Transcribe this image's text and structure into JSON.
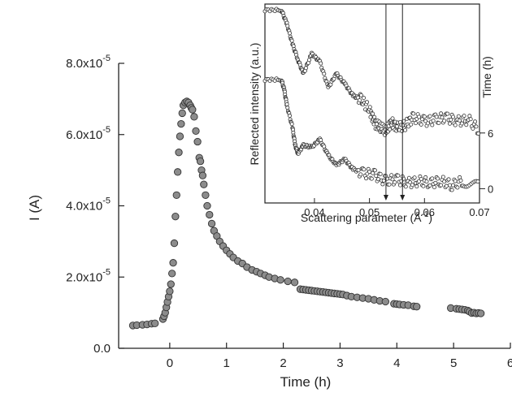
{
  "chart_data": [
    {
      "type": "scatter",
      "xlabel": "Time (h)",
      "ylabel": "I (A)",
      "xlim": [
        -0.9,
        6.0
      ],
      "ylim": [
        0.0,
        8e-05
      ],
      "xticks": [
        0,
        1,
        2,
        3,
        4,
        5,
        6
      ],
      "xtick_labels": [
        "0",
        "1",
        "2",
        "3",
        "4",
        "5",
        "6"
      ],
      "yticks": [
        0,
        2e-05,
        4e-05,
        6e-05,
        8e-05
      ],
      "ytick_labels": [
        {
          "mant": "0.0",
          "exp": ""
        },
        {
          "mant": "2.0x10",
          "exp": "-5"
        },
        {
          "mant": "4.0x10",
          "exp": "-5"
        },
        {
          "mant": "6.0x10",
          "exp": "-5"
        },
        {
          "mant": "8.0x10",
          "exp": "-5"
        }
      ],
      "marker_color": "#8c8c8c",
      "series": [
        {
          "points": [
            [
              -0.65,
              6.4e-06
            ],
            [
              -0.58,
              6.5e-06
            ],
            [
              -0.48,
              6.6e-06
            ],
            [
              -0.4,
              6.7e-06
            ],
            [
              -0.32,
              6.9e-06
            ],
            [
              -0.26,
              7e-06
            ],
            [
              -0.12,
              8.2e-06
            ],
            [
              -0.1,
              9e-06
            ],
            [
              -0.08,
              1e-05
            ],
            [
              -0.06,
              1.15e-05
            ],
            [
              -0.04,
              1.3e-05
            ],
            [
              -0.02,
              1.45e-05
            ],
            [
              0.0,
              1.6e-05
            ],
            [
              0.02,
              1.8e-05
            ],
            [
              0.04,
              2.1e-05
            ],
            [
              0.06,
              2.4e-05
            ],
            [
              0.08,
              2.95e-05
            ],
            [
              0.1,
              3.7e-05
            ],
            [
              0.12,
              4.3e-05
            ],
            [
              0.14,
              4.95e-05
            ],
            [
              0.16,
              5.5e-05
            ],
            [
              0.18,
              5.95e-05
            ],
            [
              0.2,
              6.3e-05
            ],
            [
              0.22,
              6.6e-05
            ],
            [
              0.24,
              6.82e-05
            ],
            [
              0.27,
              6.9e-05
            ],
            [
              0.3,
              6.93e-05
            ],
            [
              0.33,
              6.9e-05
            ],
            [
              0.36,
              6.82e-05
            ],
            [
              0.38,
              6.75e-05
            ],
            [
              0.4,
              6.7e-05
            ],
            [
              0.43,
              6.5e-05
            ],
            [
              0.46,
              6.1e-05
            ],
            [
              0.49,
              5.8e-05
            ],
            [
              0.52,
              5.35e-05
            ],
            [
              0.54,
              5.25e-05
            ],
            [
              0.56,
              5e-05
            ],
            [
              0.58,
              4.85e-05
            ],
            [
              0.6,
              4.6e-05
            ],
            [
              0.63,
              4.3e-05
            ],
            [
              0.66,
              4e-05
            ],
            [
              0.7,
              3.75e-05
            ],
            [
              0.74,
              3.5e-05
            ],
            [
              0.78,
              3.3e-05
            ],
            [
              0.83,
              3.15e-05
            ],
            [
              0.88,
              3e-05
            ],
            [
              0.94,
              2.87e-05
            ],
            [
              1.0,
              2.75e-05
            ],
            [
              1.06,
              2.65e-05
            ],
            [
              1.12,
              2.55e-05
            ],
            [
              1.2,
              2.45e-05
            ],
            [
              1.28,
              2.38e-05
            ],
            [
              1.36,
              2.28e-05
            ],
            [
              1.45,
              2.2e-05
            ],
            [
              1.53,
              2.15e-05
            ],
            [
              1.6,
              2.1e-05
            ],
            [
              1.68,
              2.05e-05
            ],
            [
              1.75,
              2e-05
            ],
            [
              1.85,
              1.96e-05
            ],
            [
              1.95,
              1.92e-05
            ],
            [
              2.08,
              1.88e-05
            ],
            [
              2.2,
              1.85e-05
            ],
            [
              2.3,
              1.66e-05
            ],
            [
              2.35,
              1.65e-05
            ],
            [
              2.4,
              1.64e-05
            ],
            [
              2.45,
              1.63e-05
            ],
            [
              2.5,
              1.62e-05
            ],
            [
              2.55,
              1.61e-05
            ],
            [
              2.6,
              1.6e-05
            ],
            [
              2.65,
              1.59e-05
            ],
            [
              2.7,
              1.58e-05
            ],
            [
              2.75,
              1.57e-05
            ],
            [
              2.8,
              1.56e-05
            ],
            [
              2.85,
              1.55e-05
            ],
            [
              2.9,
              1.54e-05
            ],
            [
              2.95,
              1.53e-05
            ],
            [
              3.0,
              1.52e-05
            ],
            [
              3.05,
              1.51e-05
            ],
            [
              3.12,
              1.48e-05
            ],
            [
              3.2,
              1.45e-05
            ],
            [
              3.3,
              1.43e-05
            ],
            [
              3.4,
              1.41e-05
            ],
            [
              3.5,
              1.39e-05
            ],
            [
              3.6,
              1.36e-05
            ],
            [
              3.7,
              1.33e-05
            ],
            [
              3.8,
              1.31e-05
            ],
            [
              3.95,
              1.25e-05
            ],
            [
              4.0,
              1.24e-05
            ],
            [
              4.05,
              1.23e-05
            ],
            [
              4.12,
              1.22e-05
            ],
            [
              4.2,
              1.21e-05
            ],
            [
              4.3,
              1.18e-05
            ],
            [
              4.35,
              1.17e-05
            ],
            [
              4.95,
              1.13e-05
            ],
            [
              5.05,
              1.11e-05
            ],
            [
              5.1,
              1.1e-05
            ],
            [
              5.15,
              1.09e-05
            ],
            [
              5.2,
              1.08e-05
            ],
            [
              5.25,
              1.06e-05
            ],
            [
              5.28,
              1.03e-05
            ],
            [
              5.32,
              9.9e-06
            ],
            [
              5.36,
              1e-05
            ],
            [
              5.4,
              9.8e-06
            ],
            [
              5.44,
              9.9e-06
            ],
            [
              5.48,
              9.8e-06
            ]
          ]
        }
      ]
    },
    {
      "type": "line",
      "xlabel": "Scattering parameter (Å",
      "xlabel_sup": "-1",
      "xlabel_end": ")",
      "ylabel": "Reflected intensity (a.u.)",
      "right_label": "Time (h)",
      "xlim": [
        0.031,
        0.07
      ],
      "xticks": [
        0.04,
        0.05,
        0.06,
        0.07
      ],
      "xtick_labels": [
        "0.04",
        "0.05",
        "0.06",
        "0.07"
      ],
      "markers": [
        0.053,
        0.056
      ],
      "series": [
        {
          "name": "6",
          "x": [
            0.031,
            0.034,
            0.035,
            0.036,
            0.037,
            0.038,
            0.0395,
            0.041,
            0.0425,
            0.044,
            0.0455,
            0.047,
            0.0485,
            0.05,
            0.051,
            0.052,
            0.053,
            0.054,
            0.055,
            0.0565,
            0.058,
            0.06,
            0.062,
            0.064,
            0.066,
            0.068,
            0.07
          ],
          "y": [
            0.97,
            0.97,
            0.9,
            0.8,
            0.72,
            0.65,
            0.75,
            0.71,
            0.58,
            0.65,
            0.6,
            0.54,
            0.52,
            0.47,
            0.4,
            0.38,
            0.36,
            0.41,
            0.38,
            0.39,
            0.43,
            0.41,
            0.42,
            0.43,
            0.41,
            0.42,
            0.36
          ]
        },
        {
          "name": "0",
          "x": [
            0.031,
            0.034,
            0.0345,
            0.035,
            0.036,
            0.0365,
            0.037,
            0.038,
            0.0395,
            0.041,
            0.0425,
            0.044,
            0.0455,
            0.047,
            0.049,
            0.051,
            0.053,
            0.055,
            0.057,
            0.059,
            0.061,
            0.063,
            0.065,
            0.067,
            0.07
          ],
          "y": [
            0.62,
            0.62,
            0.57,
            0.49,
            0.38,
            0.29,
            0.25,
            0.29,
            0.28,
            0.32,
            0.24,
            0.19,
            0.22,
            0.17,
            0.15,
            0.14,
            0.11,
            0.12,
            0.1,
            0.11,
            0.1,
            0.11,
            0.09,
            0.11,
            0.08
          ]
        }
      ]
    }
  ]
}
